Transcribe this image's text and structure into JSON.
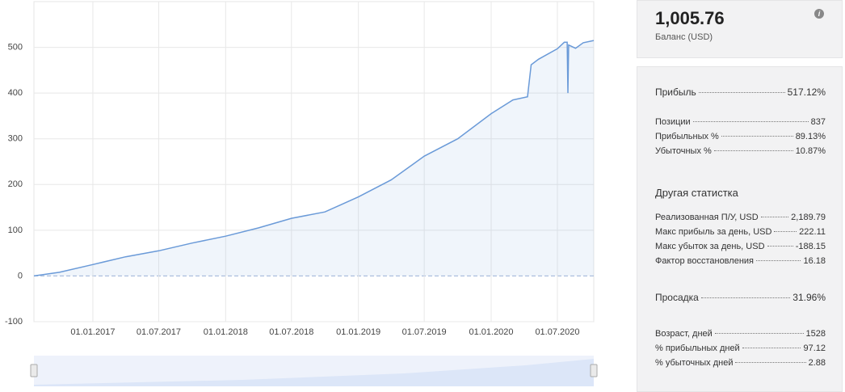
{
  "chart_data": {
    "type": "line",
    "x": [
      "2016-07-23",
      "2016-10-01",
      "2017-01-01",
      "2017-04-01",
      "2017-07-01",
      "2017-10-01",
      "2018-01-01",
      "2018-04-01",
      "2018-07-01",
      "2018-10-01",
      "2019-01-01",
      "2019-04-01",
      "2019-07-01",
      "2019-10-01",
      "2020-01-01",
      "2020-03-01",
      "2020-04-10",
      "2020-04-20",
      "2020-05-10",
      "2020-07-01",
      "2020-07-20",
      "2020-07-28",
      "2020-07-30",
      "2020-08-01",
      "2020-08-20",
      "2020-09-10",
      "2020-10-09"
    ],
    "series": [
      {
        "color": "#6a9ad8",
        "values": [
          0,
          8,
          25,
          42,
          55,
          72,
          87,
          105,
          126,
          140,
          173,
          210,
          262,
          300,
          355,
          385,
          392,
          462,
          474,
          497,
          511,
          511,
          400,
          505,
          498,
          510,
          515
        ]
      }
    ],
    "xlim": [
      "2016-07-23",
      "2020-10-09"
    ],
    "xticks": [
      {
        "value": "2017-01-01",
        "label": "01.01.2017"
      },
      {
        "value": "2017-07-01",
        "label": "01.07.2017"
      },
      {
        "value": "2018-01-01",
        "label": "01.01.2018"
      },
      {
        "value": "2018-07-01",
        "label": "01.07.2018"
      },
      {
        "value": "2019-01-01",
        "label": "01.01.2019"
      },
      {
        "value": "2019-07-01",
        "label": "01.07.2019"
      },
      {
        "value": "2020-01-01",
        "label": "01.01.2020"
      },
      {
        "value": "2020-07-01",
        "label": "01.07.2020"
      }
    ],
    "ylim": [
      -100,
      600
    ],
    "yticks": [
      -100,
      0,
      100,
      200,
      300,
      400,
      500
    ],
    "grid": true
  },
  "balance": {
    "value": "1,005.76",
    "label": "Баланс (USD)"
  },
  "stat_groups": [
    {
      "rows": [
        [
          "Прибыль",
          "517.12%"
        ]
      ]
    },
    {
      "rows": [
        [
          "Позиции",
          "837"
        ],
        [
          "Прибыльных %",
          "89.13%"
        ],
        [
          "Убыточных %",
          "10.87%"
        ]
      ]
    },
    {
      "title": "Другая статистка",
      "rows": [
        [
          "Реализованная П/У, USD",
          "2,189.79"
        ],
        [
          "Макс прибыль за день, USD",
          "222.11"
        ],
        [
          "Макс убыток за день, USD",
          "-188.15"
        ],
        [
          "Фактор восстановления",
          "16.18"
        ]
      ]
    },
    {
      "rows": [
        [
          "Просадка",
          "31.96%"
        ]
      ]
    },
    {
      "rows": [
        [
          "Возраст, дней",
          "1528"
        ],
        [
          "% прибыльных дней",
          "97.12"
        ],
        [
          "% убыточных дней",
          "2.88"
        ]
      ]
    }
  ]
}
